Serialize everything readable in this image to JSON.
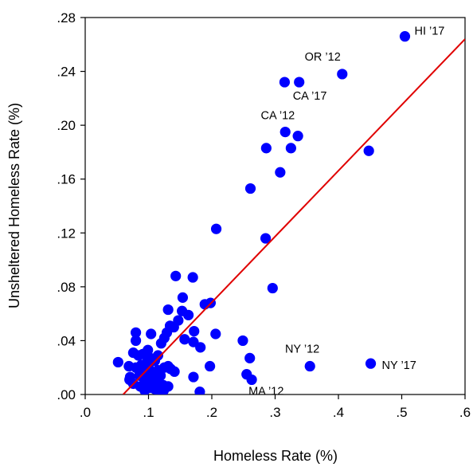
{
  "chart_data": {
    "type": "scatter",
    "title": "",
    "xlabel": "Homeless Rate (%)",
    "ylabel": "Unsheltered Homeless Rate (%)",
    "xlim": [
      0.0,
      0.6
    ],
    "ylim": [
      0.0,
      0.28
    ],
    "x_ticks": [
      0.0,
      0.1,
      0.2,
      0.3,
      0.4,
      0.5,
      0.6
    ],
    "x_tick_labels": [
      ".0",
      ".1",
      ".2",
      ".3",
      ".4",
      ".5",
      ".6"
    ],
    "y_ticks": [
      0.0,
      0.04,
      0.08,
      0.12,
      0.16,
      0.2,
      0.24,
      0.28
    ],
    "y_tick_labels": [
      ".00",
      ".04",
      ".08",
      ".12",
      ".16",
      ".20",
      ".24",
      ".28"
    ],
    "grid": false,
    "legend": "none",
    "colors": {
      "points": "#0000ff",
      "fit_line": "#e00000",
      "axes": "#000000"
    },
    "points": [
      {
        "x": 0.505,
        "y": 0.266
      },
      {
        "x": 0.406,
        "y": 0.238
      },
      {
        "x": 0.315,
        "y": 0.232
      },
      {
        "x": 0.338,
        "y": 0.232
      },
      {
        "x": 0.316,
        "y": 0.195
      },
      {
        "x": 0.336,
        "y": 0.192
      },
      {
        "x": 0.286,
        "y": 0.183
      },
      {
        "x": 0.325,
        "y": 0.183
      },
      {
        "x": 0.448,
        "y": 0.181
      },
      {
        "x": 0.308,
        "y": 0.165
      },
      {
        "x": 0.261,
        "y": 0.153
      },
      {
        "x": 0.207,
        "y": 0.123
      },
      {
        "x": 0.285,
        "y": 0.116
      },
      {
        "x": 0.296,
        "y": 0.079
      },
      {
        "x": 0.143,
        "y": 0.088
      },
      {
        "x": 0.17,
        "y": 0.087
      },
      {
        "x": 0.154,
        "y": 0.072
      },
      {
        "x": 0.198,
        "y": 0.068
      },
      {
        "x": 0.189,
        "y": 0.067
      },
      {
        "x": 0.131,
        "y": 0.063
      },
      {
        "x": 0.153,
        "y": 0.062
      },
      {
        "x": 0.163,
        "y": 0.059
      },
      {
        "x": 0.147,
        "y": 0.055
      },
      {
        "x": 0.14,
        "y": 0.05
      },
      {
        "x": 0.134,
        "y": 0.051
      },
      {
        "x": 0.129,
        "y": 0.046
      },
      {
        "x": 0.125,
        "y": 0.042
      },
      {
        "x": 0.12,
        "y": 0.038
      },
      {
        "x": 0.104,
        "y": 0.045
      },
      {
        "x": 0.08,
        "y": 0.046
      },
      {
        "x": 0.172,
        "y": 0.047
      },
      {
        "x": 0.206,
        "y": 0.045
      },
      {
        "x": 0.157,
        "y": 0.041
      },
      {
        "x": 0.171,
        "y": 0.039
      },
      {
        "x": 0.182,
        "y": 0.035
      },
      {
        "x": 0.08,
        "y": 0.04
      },
      {
        "x": 0.099,
        "y": 0.033
      },
      {
        "x": 0.091,
        "y": 0.03
      },
      {
        "x": 0.076,
        "y": 0.031
      },
      {
        "x": 0.084,
        "y": 0.029
      },
      {
        "x": 0.115,
        "y": 0.029
      },
      {
        "x": 0.103,
        "y": 0.027
      },
      {
        "x": 0.11,
        "y": 0.025
      },
      {
        "x": 0.098,
        "y": 0.024
      },
      {
        "x": 0.089,
        "y": 0.022
      },
      {
        "x": 0.08,
        "y": 0.02
      },
      {
        "x": 0.052,
        "y": 0.024
      },
      {
        "x": 0.069,
        "y": 0.021
      },
      {
        "x": 0.085,
        "y": 0.018
      },
      {
        "x": 0.1,
        "y": 0.02
      },
      {
        "x": 0.115,
        "y": 0.018
      },
      {
        "x": 0.125,
        "y": 0.02
      },
      {
        "x": 0.131,
        "y": 0.021
      },
      {
        "x": 0.135,
        "y": 0.019
      },
      {
        "x": 0.141,
        "y": 0.017
      },
      {
        "x": 0.109,
        "y": 0.015
      },
      {
        "x": 0.119,
        "y": 0.014
      },
      {
        "x": 0.096,
        "y": 0.015
      },
      {
        "x": 0.086,
        "y": 0.014
      },
      {
        "x": 0.071,
        "y": 0.013
      },
      {
        "x": 0.07,
        "y": 0.011
      },
      {
        "x": 0.076,
        "y": 0.008
      },
      {
        "x": 0.094,
        "y": 0.009
      },
      {
        "x": 0.104,
        "y": 0.011
      },
      {
        "x": 0.113,
        "y": 0.009
      },
      {
        "x": 0.123,
        "y": 0.007
      },
      {
        "x": 0.131,
        "y": 0.006
      },
      {
        "x": 0.087,
        "y": 0.006
      },
      {
        "x": 0.102,
        "y": 0.005
      },
      {
        "x": 0.11,
        "y": 0.004
      },
      {
        "x": 0.116,
        "y": 0.003
      },
      {
        "x": 0.124,
        "y": 0.003
      },
      {
        "x": 0.094,
        "y": 0.003
      },
      {
        "x": 0.181,
        "y": 0.002
      },
      {
        "x": 0.171,
        "y": 0.013
      },
      {
        "x": 0.197,
        "y": 0.021
      },
      {
        "x": 0.249,
        "y": 0.04
      },
      {
        "x": 0.26,
        "y": 0.027
      },
      {
        "x": 0.255,
        "y": 0.015
      },
      {
        "x": 0.263,
        "y": 0.011
      },
      {
        "x": 0.355,
        "y": 0.021
      },
      {
        "x": 0.451,
        "y": 0.023
      }
    ],
    "annotations": [
      {
        "text": "HI ’17",
        "x": 0.505,
        "y": 0.266
      },
      {
        "text": "OR ’12",
        "x": 0.406,
        "y": 0.238
      },
      {
        "text": "CA ’17",
        "x": 0.338,
        "y": 0.232
      },
      {
        "text": "CA ’12",
        "x": 0.316,
        "y": 0.195
      },
      {
        "text": "NY ’12",
        "x": 0.355,
        "y": 0.021
      },
      {
        "text": "NY ’17",
        "x": 0.451,
        "y": 0.023
      },
      {
        "text": "MA ’12",
        "x": 0.263,
        "y": 0.011
      }
    ],
    "fit_line": {
      "x1": 0.06,
      "y1": 0.0,
      "x2": 0.6,
      "y2": 0.264
    }
  }
}
